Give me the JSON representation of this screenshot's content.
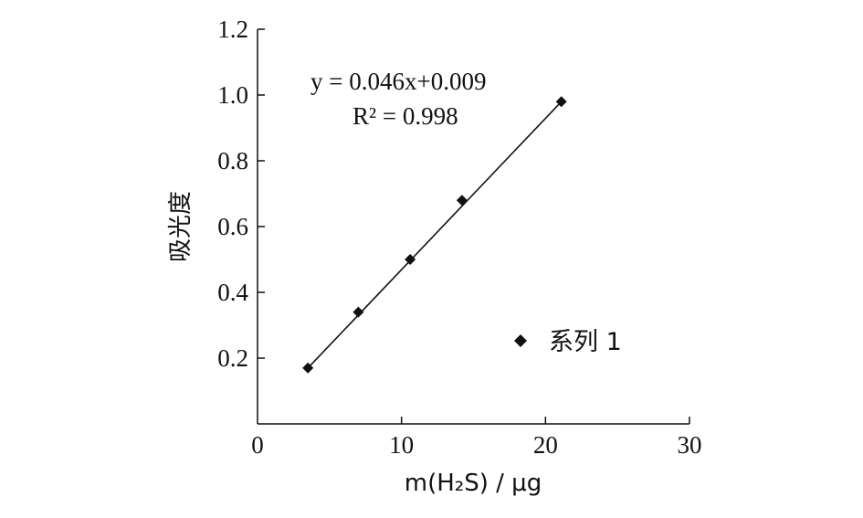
{
  "chart_data": {
    "type": "scatter",
    "xlabel": "m(H₂S) / μg",
    "ylabel": "吸光度",
    "xlim": [
      0,
      30
    ],
    "ylim": [
      0,
      1.2
    ],
    "x_ticks": [
      "0",
      "10",
      "20",
      "30"
    ],
    "y_ticks": [
      "0.2",
      "0.4",
      "0.6",
      "0.8",
      "1.0",
      "1.2"
    ],
    "grid": false,
    "legend_position": "right",
    "series": [
      {
        "name": "系列 1",
        "x": [
          3.5,
          7.0,
          10.6,
          14.2,
          21.1
        ],
        "y": [
          0.17,
          0.34,
          0.5,
          0.68,
          0.98
        ],
        "marker": "diamond",
        "color": "#111111"
      }
    ],
    "trendline": {
      "slope": 0.046,
      "intercept": 0.009,
      "x_range": [
        3.5,
        21.1
      ],
      "equation": "y = 0.046x+0.009",
      "r2": "R² = 0.998"
    }
  }
}
